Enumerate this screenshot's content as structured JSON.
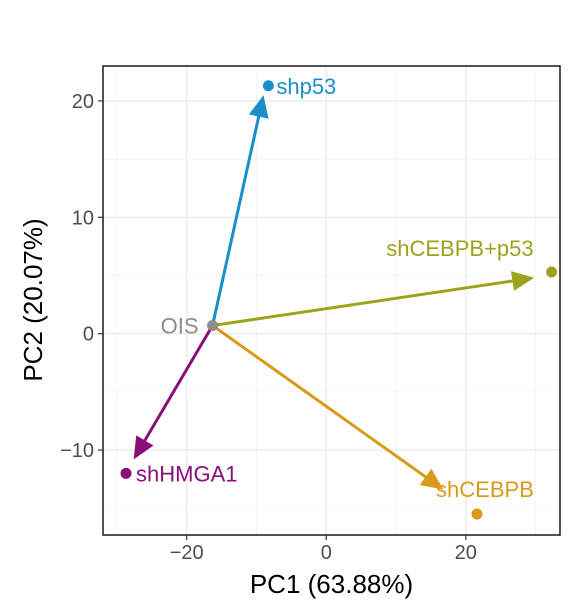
{
  "chart_data": {
    "type": "scatter",
    "title": "",
    "xlabel": "PC1 (63.88%)",
    "ylabel": "PC2 (20.07%)",
    "xlim": [
      -32,
      33.5
    ],
    "ylim": [
      -17.3,
      23
    ],
    "x_ticks": [
      -20,
      0,
      20
    ],
    "x_tick_labels": [
      "−20",
      "0",
      "20"
    ],
    "y_ticks": [
      -10,
      0,
      10,
      20
    ],
    "y_tick_labels": [
      "−10",
      "0",
      "10",
      "20"
    ],
    "grid": true,
    "legend": "none",
    "origin": {
      "name": "OIS",
      "x": -16.3,
      "y": 0.7,
      "color": "#8c8c8c"
    },
    "points": [
      {
        "name": "shp53",
        "x": -8.3,
        "y": 21.3,
        "color": "#1a8fc9"
      },
      {
        "name": "shCEBPB+p53",
        "x": 32.3,
        "y": 5.3,
        "color": "#9ea31b"
      },
      {
        "name": "shHMGA1",
        "x": -28.7,
        "y": -12.0,
        "color": "#8a0f7a"
      },
      {
        "name": "shCEBPB",
        "x": 21.6,
        "y": -15.5,
        "color": "#d99a1a"
      }
    ],
    "arrows": [
      {
        "from": "OIS",
        "to": "shp53",
        "end": {
          "x": -9.0,
          "y": 20.5
        },
        "color": "#1a8fc9"
      },
      {
        "from": "OIS",
        "to": "shCEBPB+p53",
        "end": {
          "x": 29.8,
          "y": 4.8
        },
        "color": "#9ea31b"
      },
      {
        "from": "OIS",
        "to": "shHMGA1",
        "end": {
          "x": -27.6,
          "y": -10.8
        },
        "color": "#8a0f7a"
      },
      {
        "from": "OIS",
        "to": "shCEBPB",
        "end": {
          "x": 16.8,
          "y": -13.4
        },
        "color": "#d99a1a"
      }
    ]
  }
}
